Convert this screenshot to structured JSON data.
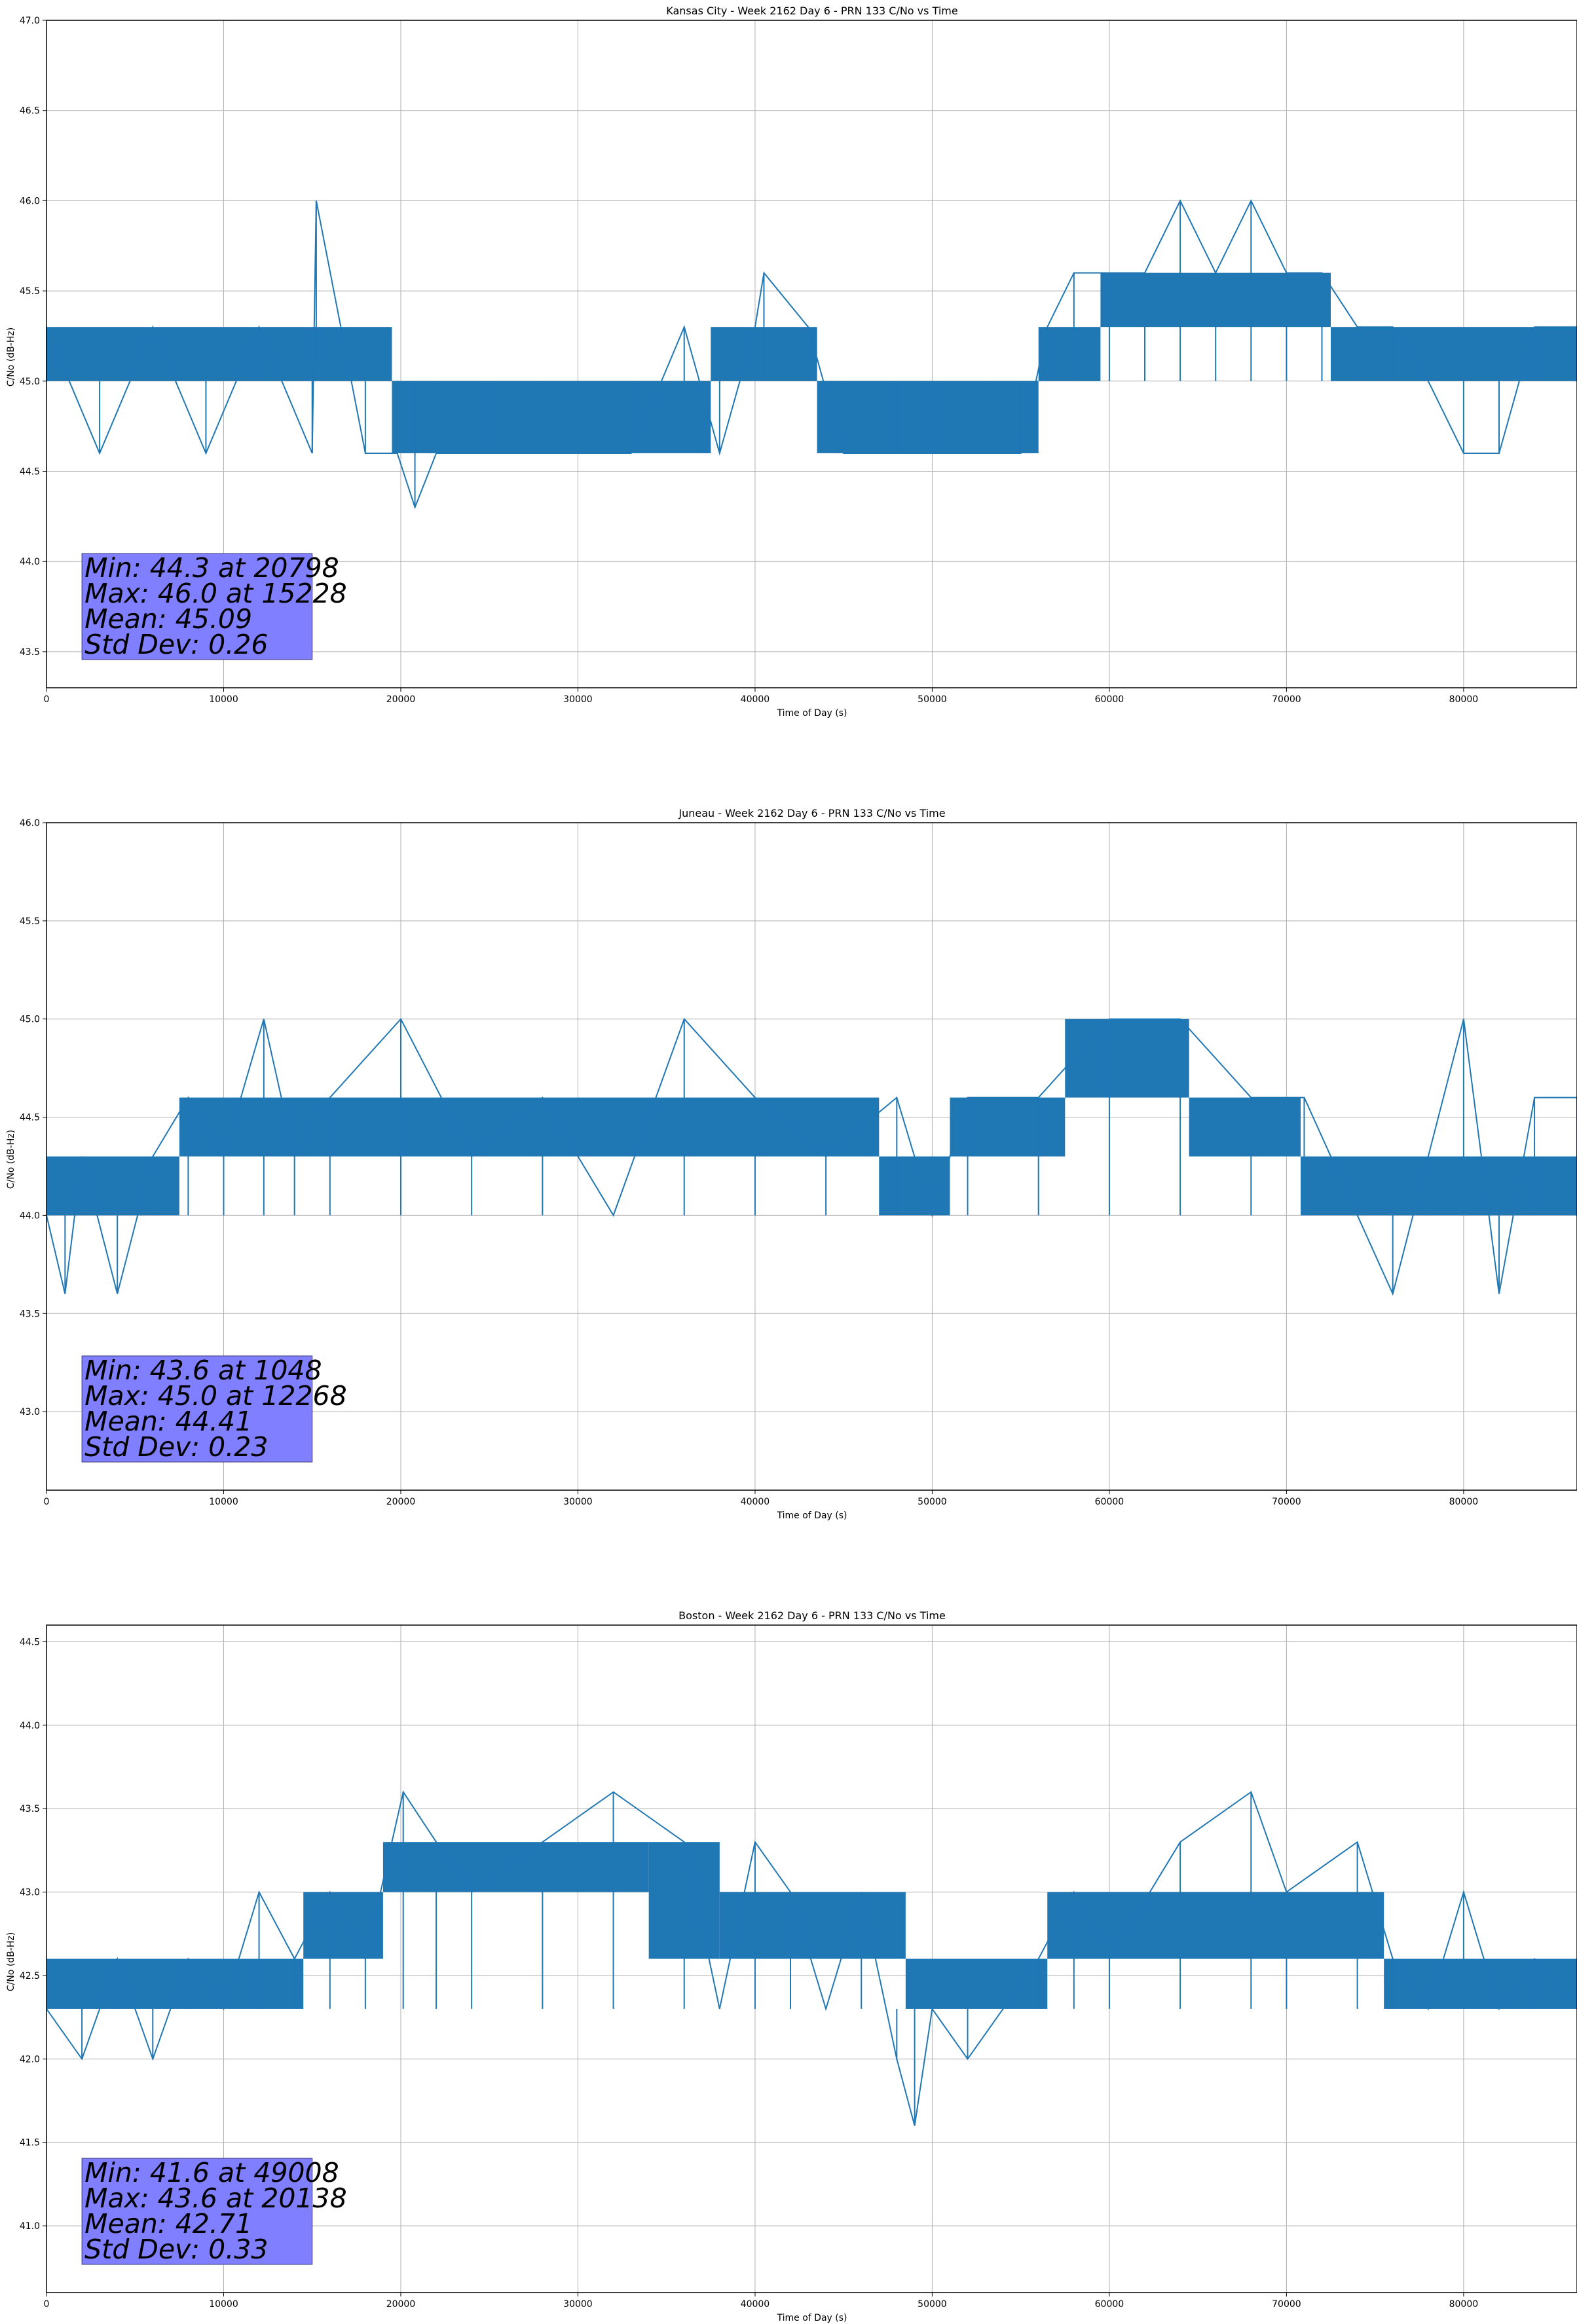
{
  "chart_data": [
    {
      "type": "line",
      "title": "Kansas City - Week 2162 Day 6 - PRN 133 C/No vs Time",
      "xlabel": "Time of Day (s)",
      "ylabel": "C/No (dB-Hz)",
      "xlim": [
        0,
        86400
      ],
      "ylim": [
        43.3,
        47.0
      ],
      "xticks": [
        0,
        10000,
        20000,
        30000,
        40000,
        50000,
        60000,
        70000,
        80000
      ],
      "yticks": [
        43.5,
        44.0,
        44.5,
        45.0,
        45.5,
        46.0,
        46.5,
        47.0
      ],
      "ytick_labels": [
        "43.5",
        "44.0",
        "44.5",
        "45.0",
        "45.5",
        "46.0",
        "46.5",
        "47.0"
      ],
      "grid": true,
      "series_color": "#1f77b4",
      "series": [
        {
          "x": [
            0,
            3000,
            6000,
            9000,
            12000,
            15000,
            15228,
            18000,
            19800,
            20798,
            22000,
            25000,
            28000,
            30000,
            33000,
            36000,
            38000,
            40000,
            40500,
            43000,
            45000,
            48000,
            50000,
            53000,
            55000,
            56500,
            58000,
            60000,
            62000,
            64000,
            66000,
            68000,
            70000,
            72000,
            74000,
            76000,
            78000,
            80000,
            82000,
            84000,
            86400
          ],
          "y": [
            45.3,
            44.6,
            45.3,
            44.6,
            45.3,
            44.6,
            46.0,
            44.6,
            44.6,
            44.3,
            44.6,
            44.6,
            44.6,
            44.6,
            44.6,
            45.3,
            44.6,
            45.3,
            45.6,
            45.3,
            44.6,
            44.6,
            44.6,
            44.6,
            44.6,
            45.3,
            45.6,
            45.6,
            45.6,
            46.0,
            45.6,
            46.0,
            45.6,
            45.6,
            45.3,
            45.3,
            45.0,
            44.6,
            44.6,
            45.3,
            45.3
          ]
        }
      ],
      "bands": [
        {
          "from": 0,
          "to": 19500,
          "low": 45.0,
          "high": 45.3
        },
        {
          "from": 19500,
          "to": 37500,
          "low": 44.6,
          "high": 45.0
        },
        {
          "from": 37500,
          "to": 43500,
          "low": 45.0,
          "high": 45.3
        },
        {
          "from": 43500,
          "to": 56000,
          "low": 44.6,
          "high": 45.0
        },
        {
          "from": 56000,
          "to": 59500,
          "low": 45.0,
          "high": 45.3
        },
        {
          "from": 59500,
          "to": 72500,
          "low": 45.3,
          "high": 45.6
        },
        {
          "from": 72500,
          "to": 86400,
          "low": 45.0,
          "high": 45.3
        }
      ],
      "annotation": [
        "Min: 44.3 at 20798",
        "Max: 46.0 at 15228",
        "Mean: 45.09",
        "Std Dev: 0.26"
      ]
    },
    {
      "type": "line",
      "title": "Juneau - Week 2162 Day 6 - PRN 133 C/No vs Time",
      "xlabel": "Time of Day (s)",
      "ylabel": "C/No (dB-Hz)",
      "xlim": [
        0,
        86400
      ],
      "ylim": [
        42.6,
        46.0
      ],
      "xticks": [
        0,
        10000,
        20000,
        30000,
        40000,
        50000,
        60000,
        70000,
        80000
      ],
      "yticks": [
        43.0,
        43.5,
        44.0,
        44.5,
        45.0,
        45.5,
        46.0
      ],
      "ytick_labels": [
        "43.0",
        "43.5",
        "44.0",
        "44.5",
        "45.0",
        "45.5",
        "46.0"
      ],
      "grid": true,
      "series_color": "#1f77b4",
      "series": [
        {
          "x": [
            0,
            1048,
            2000,
            4000,
            6000,
            8000,
            10000,
            12268,
            14000,
            16000,
            20000,
            24000,
            28000,
            32000,
            36000,
            40000,
            44000,
            48000,
            50000,
            52000,
            56000,
            60000,
            64000,
            68000,
            71000,
            74000,
            76000,
            78000,
            80000,
            82000,
            84000,
            86400
          ],
          "y": [
            44.0,
            43.6,
            44.3,
            43.6,
            44.3,
            44.6,
            44.3,
            45.0,
            44.3,
            44.6,
            45.0,
            44.3,
            44.6,
            44.0,
            45.0,
            44.6,
            44.3,
            44.6,
            44.0,
            44.6,
            44.6,
            45.0,
            45.0,
            44.6,
            44.6,
            44.0,
            43.6,
            44.3,
            45.0,
            43.6,
            44.6,
            44.6
          ]
        }
      ],
      "bands": [
        {
          "from": 0,
          "to": 7500,
          "low": 44.0,
          "high": 44.3
        },
        {
          "from": 7500,
          "to": 47000,
          "low": 44.3,
          "high": 44.6
        },
        {
          "from": 47000,
          "to": 51000,
          "low": 44.0,
          "high": 44.3
        },
        {
          "from": 51000,
          "to": 57500,
          "low": 44.3,
          "high": 44.6
        },
        {
          "from": 57500,
          "to": 64500,
          "low": 44.6,
          "high": 45.0
        },
        {
          "from": 64500,
          "to": 70800,
          "low": 44.3,
          "high": 44.6
        },
        {
          "from": 70800,
          "to": 86400,
          "low": 44.0,
          "high": 44.3
        }
      ],
      "annotation": [
        "Min: 43.6 at 1048",
        "Max: 45.0 at 12268",
        "Mean: 44.41",
        "Std Dev: 0.23"
      ]
    },
    {
      "type": "line",
      "title": "Boston - Week 2162 Day 6 - PRN 133 C/No vs Time",
      "xlabel": "Time of Day (s)",
      "ylabel": "C/No (dB-Hz)",
      "xlim": [
        0,
        86400
      ],
      "ylim": [
        40.6,
        44.6
      ],
      "xticks": [
        0,
        10000,
        20000,
        30000,
        40000,
        50000,
        60000,
        70000,
        80000
      ],
      "yticks": [
        41.0,
        41.5,
        42.0,
        42.5,
        43.0,
        43.5,
        44.0,
        44.5
      ],
      "ytick_labels": [
        "41.0",
        "41.5",
        "42.0",
        "42.5",
        "43.0",
        "43.5",
        "44.0",
        "44.5"
      ],
      "grid": true,
      "series_color": "#1f77b4",
      "series": [
        {
          "x": [
            0,
            2000,
            4000,
            6000,
            8000,
            10000,
            12000,
            14000,
            16000,
            18000,
            20138,
            22000,
            24000,
            28000,
            32000,
            36000,
            38000,
            40000,
            42000,
            44000,
            46000,
            48000,
            49008,
            50000,
            52000,
            56000,
            58000,
            60000,
            64000,
            68000,
            70000,
            74000,
            76000,
            78000,
            80000,
            82000,
            84000,
            86400
          ],
          "y": [
            42.3,
            42.0,
            42.6,
            42.0,
            42.6,
            42.3,
            43.0,
            42.6,
            43.0,
            42.6,
            43.6,
            43.3,
            43.0,
            43.3,
            43.6,
            43.3,
            42.3,
            43.3,
            43.0,
            42.3,
            43.0,
            42.0,
            41.6,
            42.3,
            42.0,
            42.6,
            43.0,
            42.6,
            43.3,
            43.6,
            43.0,
            43.3,
            42.6,
            42.3,
            43.0,
            42.3,
            42.6,
            42.3
          ]
        }
      ],
      "bands": [
        {
          "from": 0,
          "to": 8000,
          "low": 42.3,
          "high": 42.6
        },
        {
          "from": 8000,
          "to": 14500,
          "low": 42.3,
          "high": 42.6
        },
        {
          "from": 14500,
          "to": 19000,
          "low": 42.6,
          "high": 43.0
        },
        {
          "from": 19000,
          "to": 34000,
          "low": 43.0,
          "high": 43.3
        },
        {
          "from": 34000,
          "to": 38000,
          "low": 42.6,
          "high": 43.3
        },
        {
          "from": 38000,
          "to": 48500,
          "low": 42.6,
          "high": 43.0
        },
        {
          "from": 48500,
          "to": 56500,
          "low": 42.3,
          "high": 42.6
        },
        {
          "from": 56500,
          "to": 64000,
          "low": 42.6,
          "high": 43.0
        },
        {
          "from": 64000,
          "to": 75500,
          "low": 42.6,
          "high": 43.0
        },
        {
          "from": 75500,
          "to": 86400,
          "low": 42.3,
          "high": 42.6
        }
      ],
      "annotation": [
        "Min: 41.6 at 49008",
        "Max: 43.6 at 20138",
        "Mean: 42.71",
        "Std Dev: 0.33"
      ]
    }
  ]
}
